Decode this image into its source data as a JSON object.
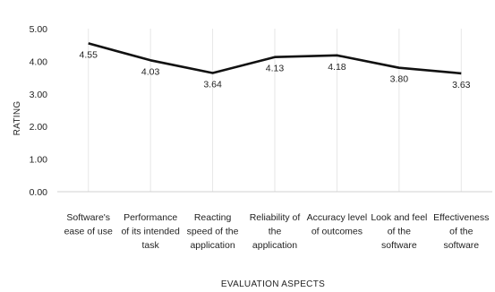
{
  "chart_data": {
    "type": "line",
    "categories": [
      [
        "Software's",
        "ease of use"
      ],
      [
        "Performance",
        "of its intended",
        "task"
      ],
      [
        "Reacting",
        "speed of the",
        "application"
      ],
      [
        "Reliability of",
        "the",
        "application"
      ],
      [
        "Accuracy level",
        "of outcomes"
      ],
      [
        "Look and feel",
        "of the",
        "software"
      ],
      [
        "Effectiveness",
        "of the",
        "software"
      ]
    ],
    "series": [
      {
        "values": [
          4.55,
          4.03,
          3.64,
          4.13,
          4.18,
          3.8,
          3.63
        ],
        "data_labels": [
          "4.55",
          "4.03",
          "3.64",
          "4.13",
          "4.18",
          "3.80",
          "3.63"
        ]
      }
    ],
    "yticks": [
      0,
      1,
      2,
      3,
      4,
      5
    ],
    "ytick_labels": [
      "0.00",
      "1.00",
      "2.00",
      "3.00",
      "4.00",
      "5.00"
    ],
    "ylim": [
      0,
      5
    ],
    "xlabel": "EVALUATION ASPECTS",
    "ylabel": "RATING",
    "grid": "vertical",
    "line_color": "#111111",
    "grid_color": "#e6e6e6"
  }
}
